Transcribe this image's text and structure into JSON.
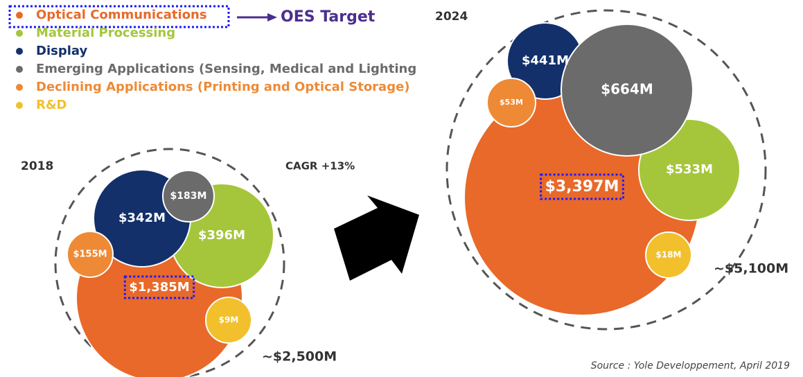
{
  "legend": {
    "items": [
      "Optical Communications",
      "Material Processing",
      "Display",
      "Emerging Applications (Sensing, Medical and Lighting",
      "Declining Applications (Printing and Optical Storage)",
      "R&D"
    ],
    "colors": [
      "#e8692a",
      "#a5c63b",
      "#13306b",
      "#6b6b6b",
      "#ee8a35",
      "#f2c02c"
    ]
  },
  "annotations": {
    "target": "OES Target",
    "cagr": "CAGR +13%",
    "source": "Source : Yole Developpement, April 2019"
  },
  "chart_data": [
    {
      "type": "bubble",
      "title": "2018",
      "values": [
        1385,
        396,
        342,
        183,
        155,
        9
      ],
      "value_labels": [
        "$1,385M",
        "$396M",
        "$342M",
        "$183M",
        "$155M",
        "$9M"
      ],
      "total_label": "~$2,500M"
    },
    {
      "type": "bubble",
      "title": "2024",
      "values": [
        3397,
        533,
        441,
        664,
        53,
        18
      ],
      "value_labels": [
        "$3,397M",
        "$533M",
        "$441M",
        "$664M",
        "$53M",
        "$18M"
      ],
      "total_label": "~$5,100M"
    }
  ]
}
